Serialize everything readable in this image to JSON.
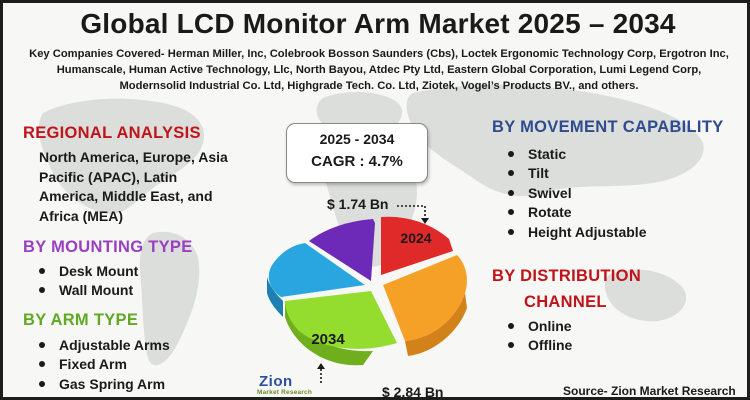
{
  "title": "Global LCD Monitor Arm Market 2025 – 2034",
  "companies": "Key Companies Covered- Herman Miller, Inc, Colebrook Bosson Saunders (Cbs), Loctek Ergonomic Technology Corp, Ergotron Inc, Humanscale, Human Active Technology, Llc, North Bayou, Atdec Pty Ltd, Eastern Global Corporation, Lumi Legend Corp, Modernsolid Industrial Co. Ltd, Highgrade Tech. Co. Ltd, Ziotek, Vogel’s Products BV., and others.",
  "regional": {
    "heading": "REGIONAL ANALYSIS",
    "body": "North America, Europe, Asia Pacific (APAC), Latin America, Middle East, and Africa (MEA)"
  },
  "mounting": {
    "heading": "BY MOUNTING TYPE",
    "items": [
      "Desk Mount",
      "Wall Mount"
    ]
  },
  "arm": {
    "heading": "BY ARM TYPE",
    "items": [
      "Adjustable Arms",
      "Fixed Arm",
      "Gas Spring Arm"
    ]
  },
  "movement": {
    "heading": "BY MOVEMENT CAPABILITY",
    "items": [
      "Static",
      "Tilt",
      "Swivel",
      "Rotate",
      "Height Adjustable"
    ]
  },
  "distribution": {
    "heading_line1": "BY DISTRIBUTION",
    "heading_line2": "CHANNEL",
    "items": [
      "Online",
      "Offline"
    ]
  },
  "growth": {
    "period": "2025 - 2034",
    "cagr": "CAGR : 4.7%",
    "value_2024": "$ 1.74 Bn",
    "value_2034": "$ 2.84 Bn",
    "label_2024": "2024",
    "label_2034": "2034"
  },
  "colors": {
    "regional": "#c0141b",
    "mounting": "#9a3fc2",
    "arm": "#61a823",
    "movement": "#2e4b8f",
    "distribution": "#c0141b",
    "slice_red": "#e02a2a",
    "slice_orange": "#f5a128",
    "slice_green": "#94dd2e",
    "slice_blue": "#29a6e0",
    "slice_purple": "#6d2ab8"
  },
  "logo": {
    "name": "Zion",
    "sub": "Market Research"
  },
  "source": "Source- Zion Market Research"
}
